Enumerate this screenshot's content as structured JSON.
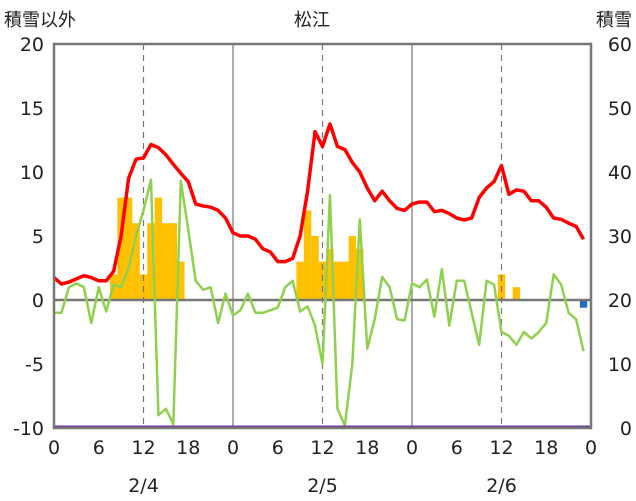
{
  "chart_data": {
    "type": "bar+line",
    "title": "松江",
    "left_axis_label": "積雪以外",
    "right_axis_label": "積雪",
    "left_ylim": [
      -10,
      20
    ],
    "left_yticks": [
      "20",
      "15",
      "10",
      "5",
      "0",
      "-5",
      "-10"
    ],
    "right_ylim": [
      0,
      60
    ],
    "right_yticks": [
      "60",
      "50",
      "40",
      "30",
      "20",
      "10",
      "0"
    ],
    "x_hours": [
      0,
      72
    ],
    "x_tick_labels": [
      "0",
      "6",
      "12",
      "18",
      "0",
      "6",
      "12",
      "18",
      "0",
      "6",
      "12",
      "18",
      "0"
    ],
    "date_labels": [
      {
        "hour": 12,
        "text": "2/4"
      },
      {
        "hour": 36,
        "text": "2/5"
      },
      {
        "hour": 60,
        "text": "2/6"
      }
    ],
    "grid": {
      "dashed_hours": [
        12,
        36,
        60
      ],
      "solid_hours": [
        24,
        48
      ]
    },
    "colors": {
      "snow_depth": "#ff0000",
      "temperature": "#8fd14f",
      "precipitation": "#ffc000",
      "negative_bar": "#1f6fc5",
      "bottom_line": "#7030a0",
      "frame": "#777777",
      "zero_line": "#777777",
      "grid": "#777777"
    },
    "series": [
      {
        "key": "snow_depth",
        "axis": "right",
        "values": [
          [
            0,
            23.5
          ],
          [
            1,
            22.5
          ],
          [
            2,
            22.8
          ],
          [
            3,
            23.3
          ],
          [
            4,
            23.8
          ],
          [
            5,
            23.5
          ],
          [
            6,
            23.0
          ],
          [
            7,
            23.0
          ],
          [
            8,
            24.5
          ],
          [
            9,
            30.0
          ],
          [
            10,
            39.0
          ],
          [
            11,
            42.0
          ],
          [
            12,
            42.2
          ],
          [
            13,
            44.3
          ],
          [
            14,
            43.8
          ],
          [
            15,
            42.7
          ],
          [
            16,
            41.2
          ],
          [
            17,
            39.8
          ],
          [
            18,
            38.5
          ],
          [
            19,
            35.0
          ],
          [
            20,
            34.7
          ],
          [
            21,
            34.5
          ],
          [
            22,
            34.0
          ],
          [
            23,
            32.8
          ],
          [
            24,
            30.5
          ],
          [
            25,
            30.0
          ],
          [
            26,
            30.0
          ],
          [
            27,
            29.5
          ],
          [
            28,
            28.0
          ],
          [
            29,
            27.5
          ],
          [
            30,
            26.0
          ],
          [
            31,
            26.0
          ],
          [
            32,
            26.5
          ],
          [
            33,
            30.0
          ],
          [
            34,
            37.0
          ],
          [
            35,
            46.3
          ],
          [
            36,
            44.0
          ],
          [
            37,
            47.5
          ],
          [
            38,
            44.0
          ],
          [
            39,
            43.5
          ],
          [
            40,
            41.5
          ],
          [
            41,
            40.0
          ],
          [
            42,
            37.5
          ],
          [
            43,
            35.5
          ],
          [
            44,
            37.0
          ],
          [
            45,
            35.5
          ],
          [
            46,
            34.3
          ],
          [
            47,
            34.0
          ],
          [
            48,
            35.0
          ],
          [
            49,
            35.3
          ],
          [
            50,
            35.3
          ],
          [
            51,
            33.8
          ],
          [
            52,
            34.0
          ],
          [
            53,
            33.5
          ],
          [
            54,
            32.8
          ],
          [
            55,
            32.5
          ],
          [
            56,
            32.8
          ],
          [
            57,
            36.0
          ],
          [
            58,
            37.5
          ],
          [
            59,
            38.5
          ],
          [
            60,
            41.0
          ],
          [
            61,
            36.5
          ],
          [
            62,
            37.2
          ],
          [
            63,
            37.0
          ],
          [
            64,
            35.5
          ],
          [
            65,
            35.5
          ],
          [
            66,
            34.5
          ],
          [
            67,
            32.8
          ],
          [
            68,
            32.6
          ],
          [
            69,
            32.0
          ],
          [
            70,
            31.5
          ],
          [
            71,
            29.5
          ]
        ]
      },
      {
        "key": "temperature",
        "axis": "left",
        "values": [
          [
            0,
            -1.0
          ],
          [
            1,
            -1.0
          ],
          [
            2,
            1.0
          ],
          [
            3,
            1.3
          ],
          [
            4,
            1.0
          ],
          [
            5,
            -1.8
          ],
          [
            6,
            1.0
          ],
          [
            7,
            -0.9
          ],
          [
            8,
            1.2
          ],
          [
            9,
            1.0
          ],
          [
            10,
            2.5
          ],
          [
            11,
            5.0
          ],
          [
            12,
            7.0
          ],
          [
            13,
            9.4
          ],
          [
            14,
            -9.0
          ],
          [
            15,
            -8.5
          ],
          [
            16,
            -9.7
          ],
          [
            17,
            9.3
          ],
          [
            18,
            5.5
          ],
          [
            19,
            1.5
          ],
          [
            20,
            0.8
          ],
          [
            21,
            1.0
          ],
          [
            22,
            -1.8
          ],
          [
            23,
            0.5
          ],
          [
            24,
            -1.2
          ],
          [
            25,
            -0.8
          ],
          [
            26,
            0.5
          ],
          [
            27,
            -1.0
          ],
          [
            28,
            -1.0
          ],
          [
            29,
            -0.8
          ],
          [
            30,
            -0.6
          ],
          [
            31,
            1.0
          ],
          [
            32,
            1.5
          ],
          [
            33,
            -0.9
          ],
          [
            34,
            -0.5
          ],
          [
            35,
            -2.0
          ],
          [
            36,
            -5.0
          ],
          [
            37,
            8.2
          ],
          [
            38,
            -8.5
          ],
          [
            39,
            -9.8
          ],
          [
            40,
            -5.0
          ],
          [
            41,
            6.3
          ],
          [
            42,
            -3.8
          ],
          [
            43,
            -1.5
          ],
          [
            44,
            1.8
          ],
          [
            45,
            1.0
          ],
          [
            46,
            -1.5
          ],
          [
            47,
            -1.6
          ],
          [
            48,
            1.3
          ],
          [
            49,
            1.0
          ],
          [
            50,
            1.6
          ],
          [
            51,
            -1.3
          ],
          [
            52,
            2.4
          ],
          [
            53,
            -2.0
          ],
          [
            54,
            1.5
          ],
          [
            55,
            1.5
          ],
          [
            56,
            -1.0
          ],
          [
            57,
            -3.5
          ],
          [
            58,
            1.5
          ],
          [
            59,
            1.2
          ],
          [
            60,
            -2.5
          ],
          [
            61,
            -2.8
          ],
          [
            62,
            -3.5
          ],
          [
            63,
            -2.5
          ],
          [
            64,
            -3.0
          ],
          [
            65,
            -2.5
          ],
          [
            66,
            -1.8
          ],
          [
            67,
            2.0
          ],
          [
            68,
            1.2
          ],
          [
            69,
            -1.0
          ],
          [
            70,
            -1.5
          ],
          [
            71,
            -4.0
          ]
        ]
      },
      {
        "key": "precipitation",
        "axis": "left",
        "bars": [
          [
            8,
            2.0
          ],
          [
            9,
            8.0
          ],
          [
            10,
            8.0
          ],
          [
            11,
            6.0
          ],
          [
            12,
            2.0
          ],
          [
            13,
            6.0
          ],
          [
            14,
            8.0
          ],
          [
            15,
            6.0
          ],
          [
            16,
            6.0
          ],
          [
            17,
            3.0
          ],
          [
            33,
            3.0
          ],
          [
            34,
            7.0
          ],
          [
            35,
            5.0
          ],
          [
            36,
            3.0
          ],
          [
            37,
            4.0
          ],
          [
            38,
            3.0
          ],
          [
            39,
            3.0
          ],
          [
            40,
            5.0
          ],
          [
            41,
            4.0
          ],
          [
            60,
            2.0
          ],
          [
            62,
            1.0
          ]
        ]
      },
      {
        "key": "negative_bar",
        "axis": "left",
        "bars": [
          [
            71,
            -0.6
          ]
        ]
      }
    ]
  }
}
